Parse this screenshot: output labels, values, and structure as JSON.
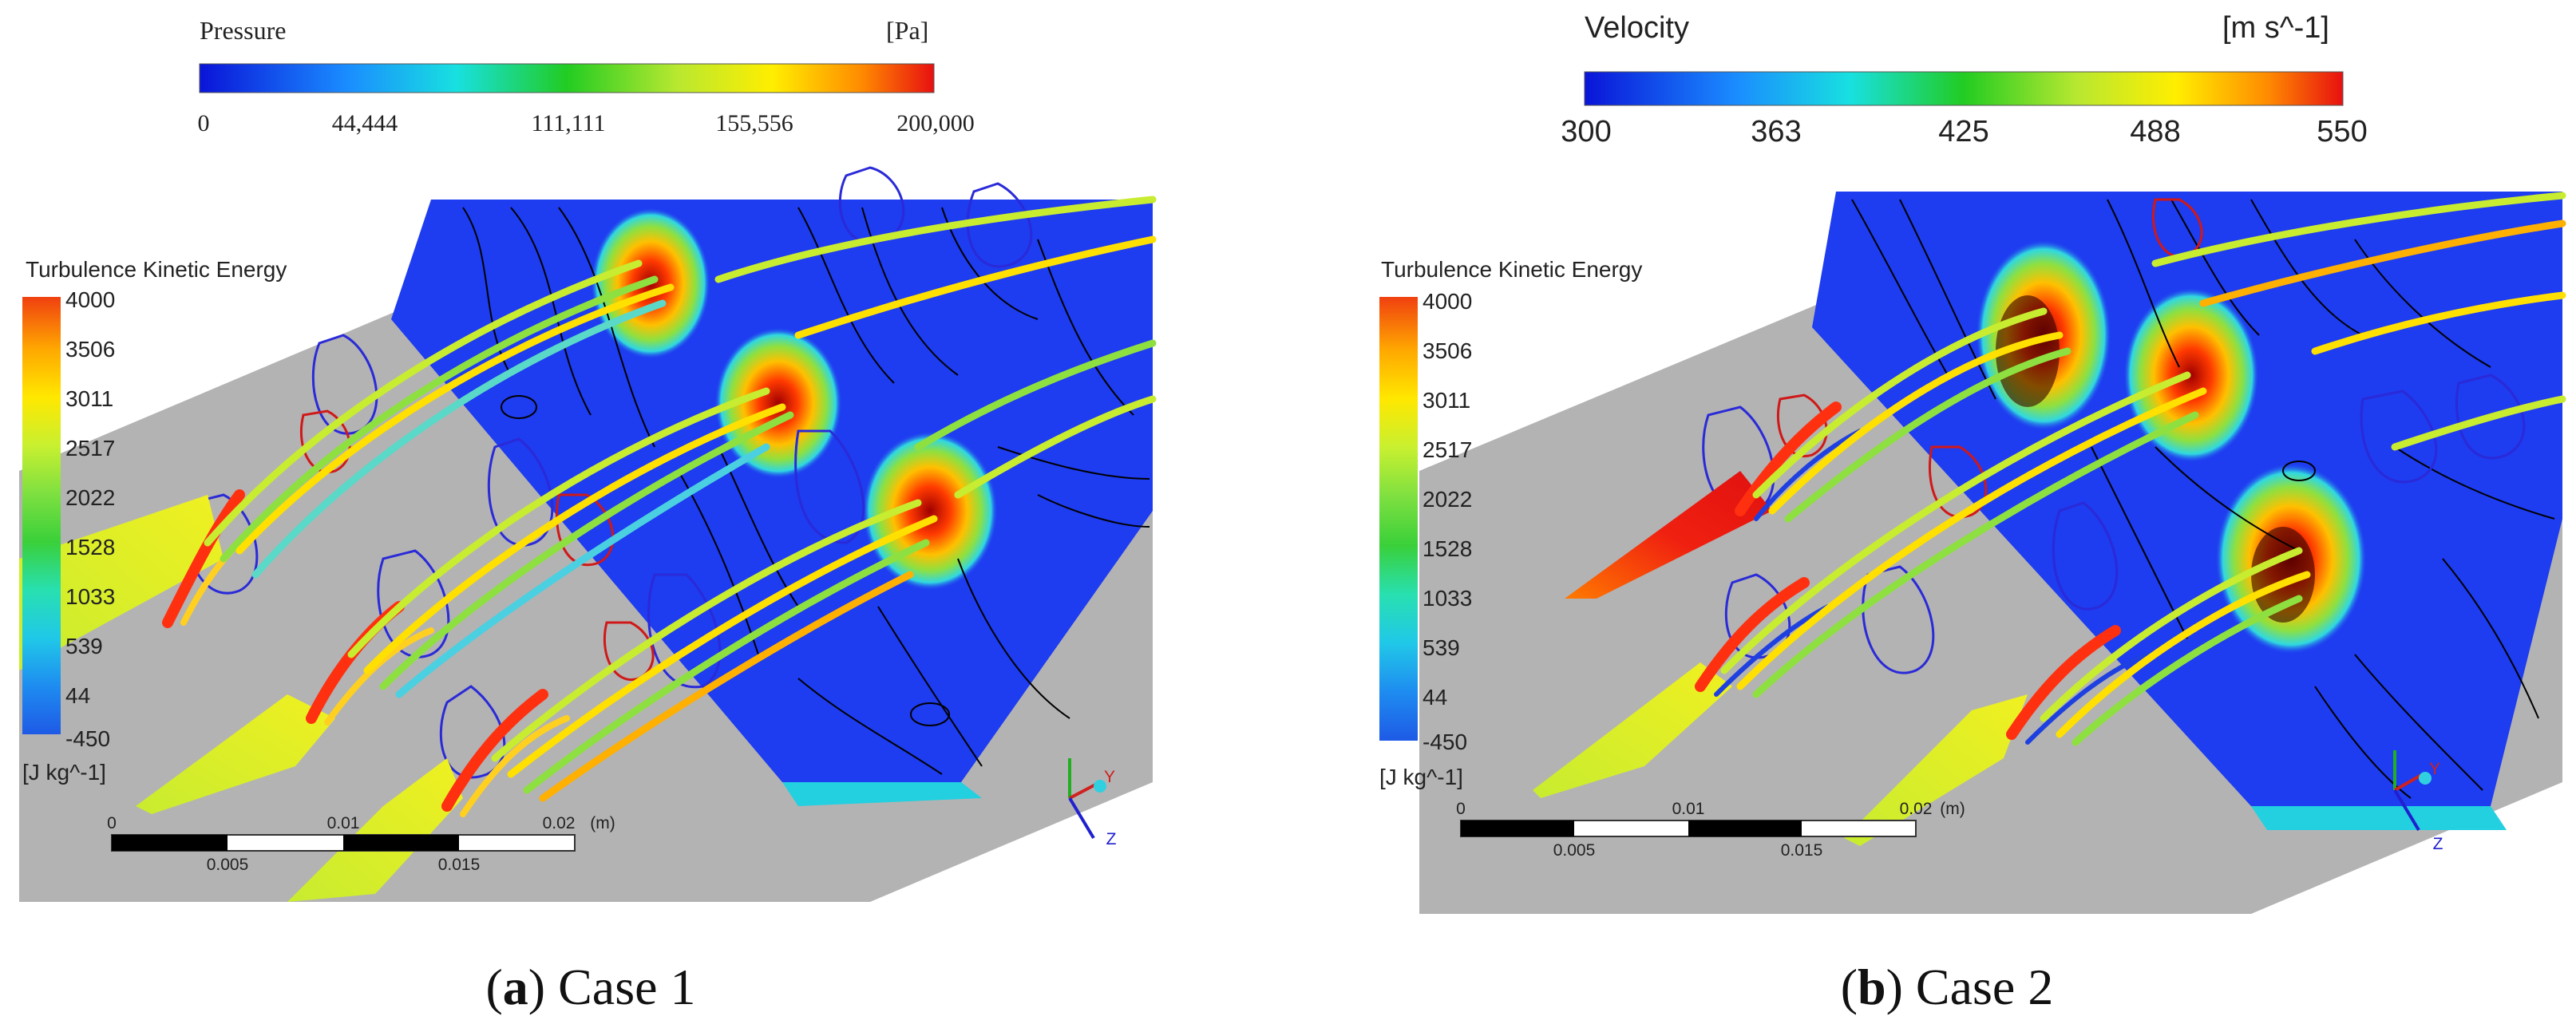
{
  "panels": [
    {
      "id": "a",
      "colorbar": {
        "title": "Pressure",
        "unit": "[Pa]",
        "ticks": [
          "0",
          "44,444",
          "111,111",
          "155,556",
          "200,000"
        ],
        "serif": true
      },
      "tke": {
        "title": "Turbulence Kinetic Energy",
        "ticks": [
          "4000",
          "3506",
          "3011",
          "2517",
          "2022",
          "1528",
          "1033",
          "539",
          "44",
          "-450"
        ],
        "unit": "[J kg^-1]"
      },
      "scale": {
        "top": [
          "0",
          "0.01",
          "0.02"
        ],
        "unit": "(m)",
        "bottom": [
          "0.005",
          "0.015"
        ]
      },
      "axes": {
        "y": "Y",
        "z": "Z"
      },
      "caption": {
        "letter": "a",
        "text": "Case 1"
      }
    },
    {
      "id": "b",
      "colorbar": {
        "title": "Velocity",
        "unit": "[m s^-1]",
        "ticks": [
          "300",
          "363",
          "425",
          "488",
          "550"
        ],
        "serif": false
      },
      "tke": {
        "title": "Turbulence Kinetic Energy",
        "ticks": [
          "4000",
          "3506",
          "3011",
          "2517",
          "2022",
          "1528",
          "1033",
          "539",
          "44",
          "-450"
        ],
        "unit": "[J kg^-1]"
      },
      "scale": {
        "top": [
          "0",
          "0.01",
          "0.02"
        ],
        "unit": "(m)",
        "bottom": [
          "0.005",
          "0.015"
        ]
      },
      "axes": {
        "y": "Y",
        "z": "Z"
      },
      "caption": {
        "letter": "b",
        "text": "Case 2"
      }
    }
  ],
  "colors": {
    "background_gray": "#b3b3b3",
    "plane_blue": "#1e3cf0",
    "streamline_black": "#000000",
    "contour_blue": "#2a2ad8",
    "contour_red": "#d01818"
  }
}
